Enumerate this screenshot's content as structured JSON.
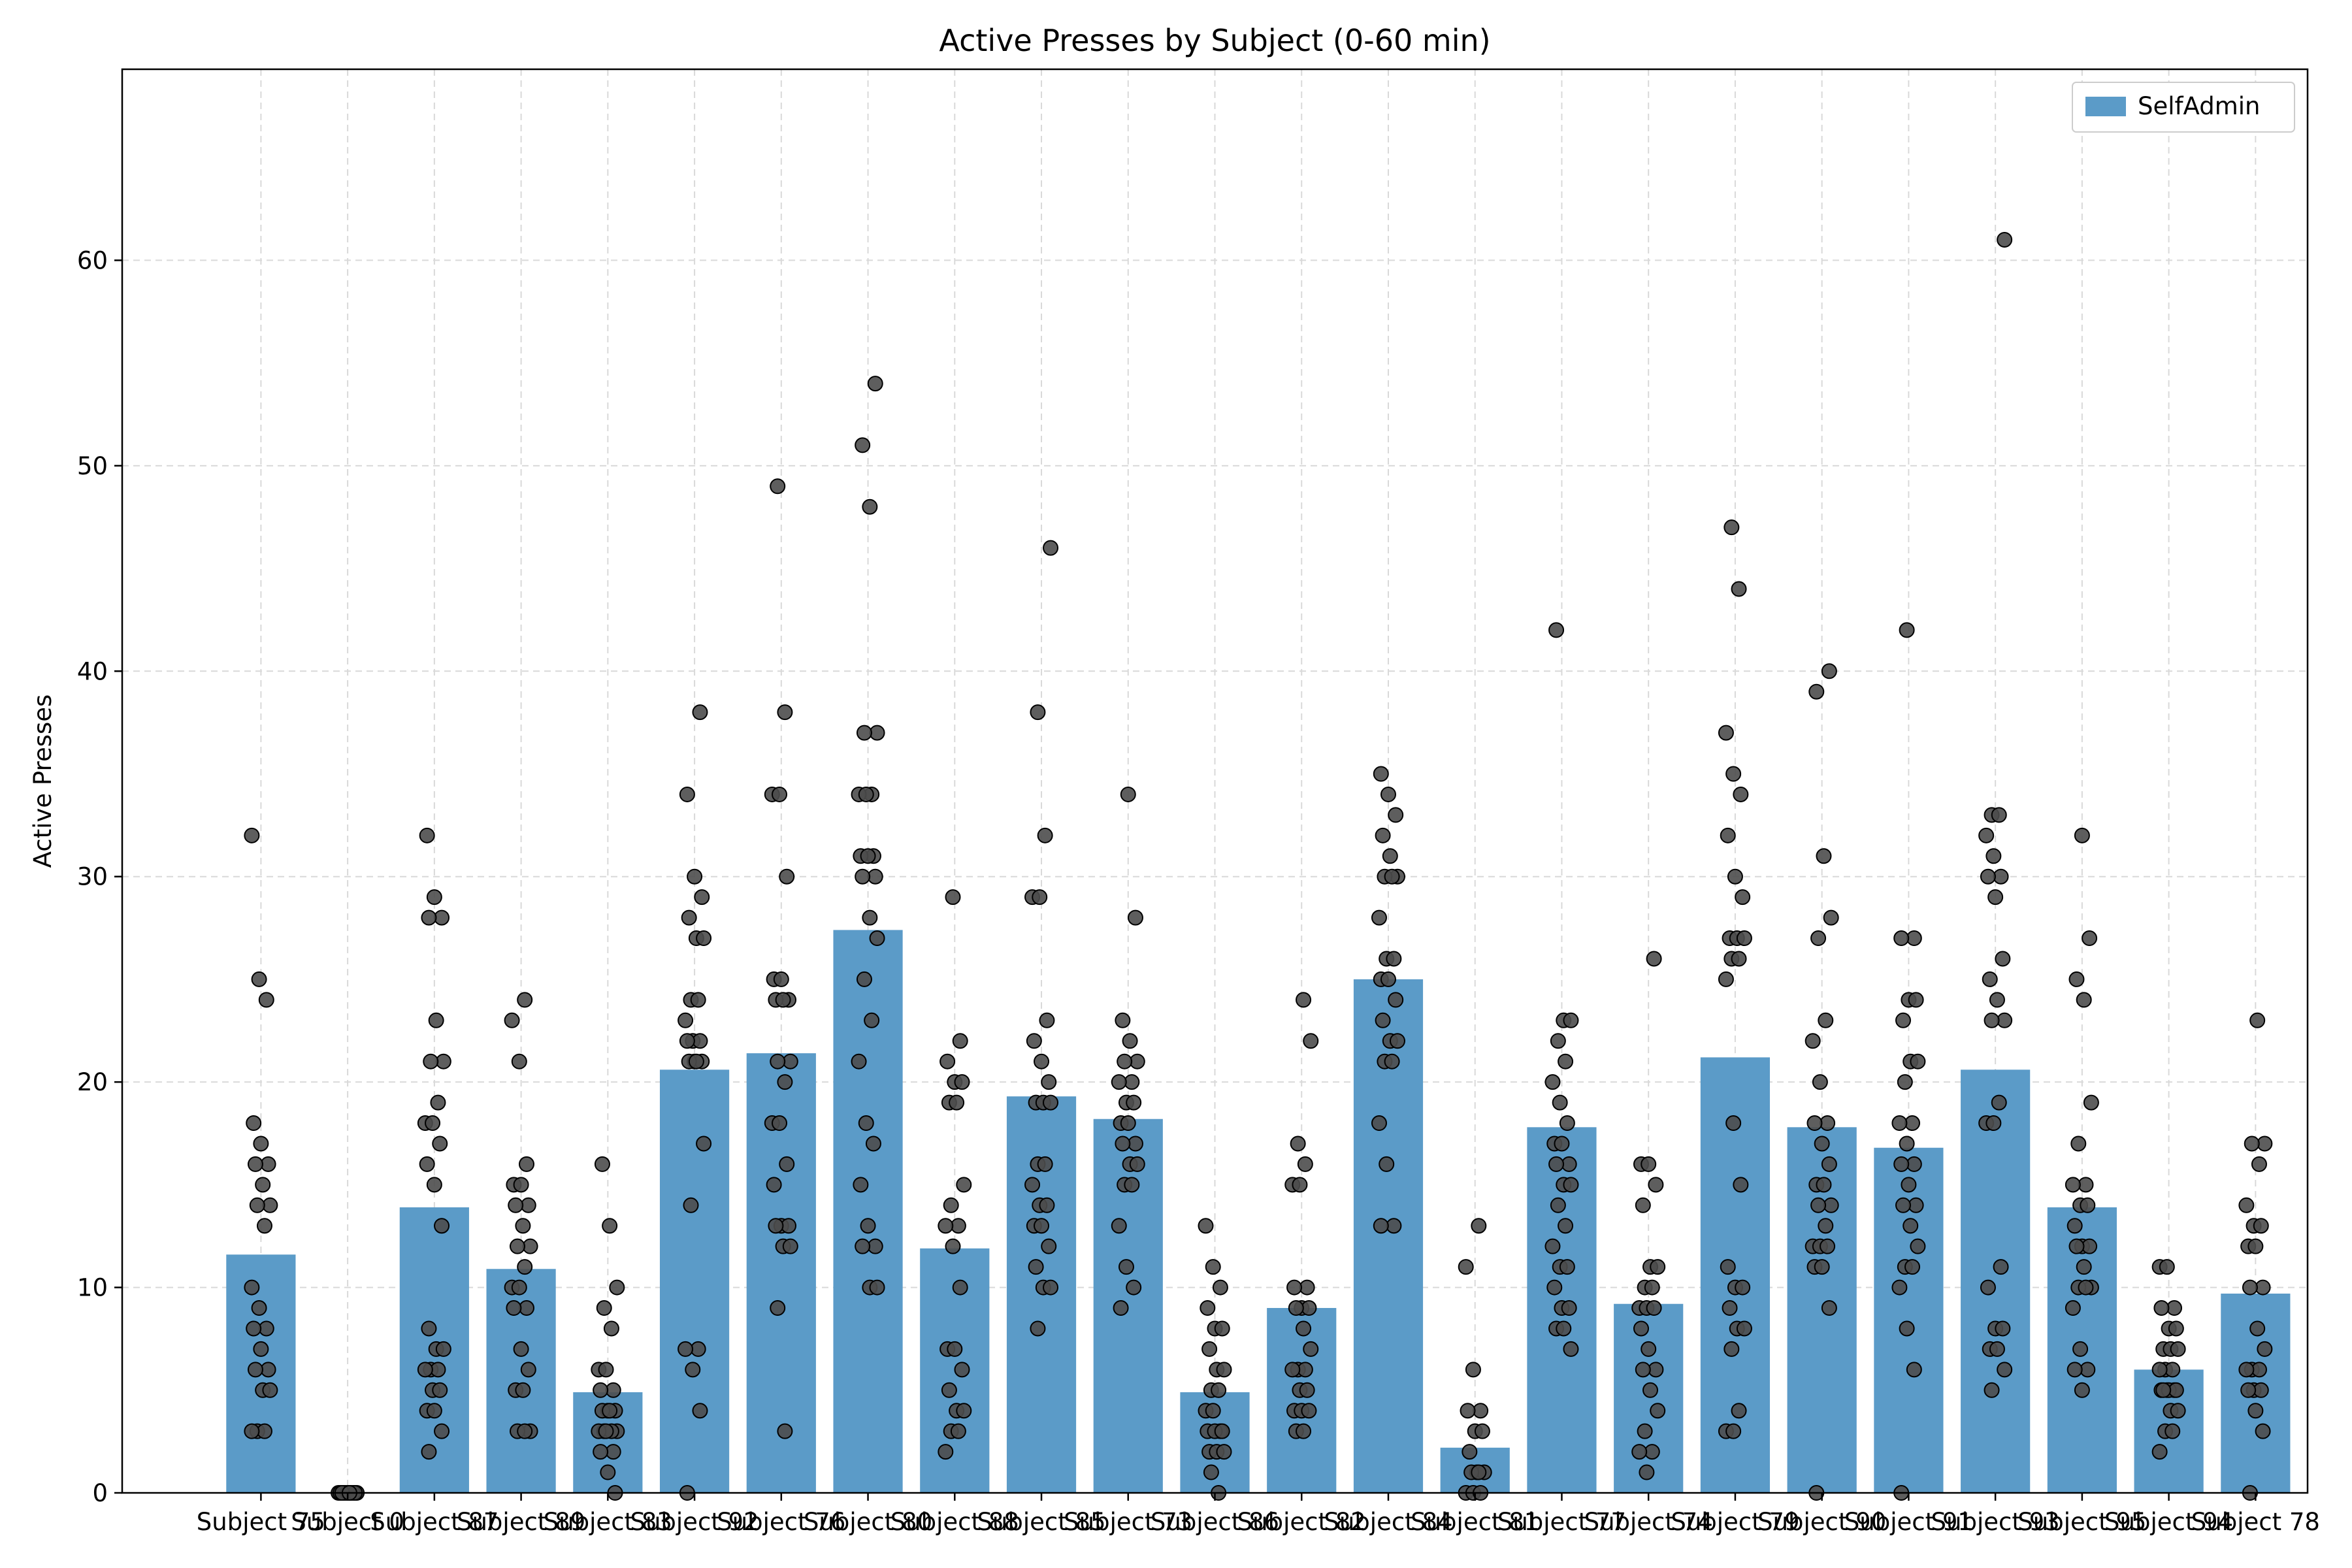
{
  "chart_data": {
    "type": "bar",
    "title": "Active Presses by Subject (0-60 min)",
    "xlabel": "",
    "ylabel": "Active Presses",
    "ylim": [
      0,
      69.3
    ],
    "yticks": [
      0,
      10,
      20,
      30,
      40,
      50,
      60
    ],
    "grid": true,
    "legend_position": "top-right",
    "colors": {
      "bar": "#5b9bc8",
      "point_fill": "#4d4d4d",
      "point_edge": "#000000",
      "grid": "#d9d9d9"
    },
    "categories": [
      "Subject 75",
      "Subject 0",
      "Subject 87",
      "Subject 89",
      "Subject 83",
      "Subject 92",
      "Subject 76",
      "Subject 80",
      "Subject 88",
      "Subject 85",
      "Subject 73",
      "Subject 86",
      "Subject 82",
      "Subject 84",
      "Subject 81",
      "Subject 77",
      "Subject 74",
      "Subject 79",
      "Subject 90",
      "Subject 91",
      "Subject 93",
      "Subject 95",
      "Subject 94",
      "Subject 78"
    ],
    "series": [
      {
        "name": "SelfAdmin",
        "values": [
          11.6,
          0,
          13.9,
          10.9,
          4.9,
          20.6,
          21.4,
          27.4,
          11.9,
          19.3,
          18.2,
          4.9,
          9.0,
          25.0,
          2.2,
          17.8,
          9.2,
          21.2,
          17.8,
          16.8,
          20.6,
          13.9,
          6.0,
          9.7
        ]
      }
    ],
    "points": [
      [
        32,
        25,
        24,
        18,
        17,
        16,
        16,
        15,
        14,
        14,
        13,
        10,
        9,
        8,
        8,
        7,
        6,
        6,
        5,
        5,
        3,
        3,
        3
      ],
      [
        0,
        0,
        0,
        0,
        0,
        0,
        0,
        0,
        0,
        0,
        0,
        0
      ],
      [
        32,
        29,
        28,
        28,
        23,
        21,
        21,
        19,
        18,
        18,
        17,
        16,
        15,
        13,
        8,
        7,
        7,
        6,
        6,
        6,
        5,
        5,
        4,
        4,
        3,
        2
      ],
      [
        24,
        23,
        21,
        16,
        15,
        15,
        14,
        14,
        13,
        12,
        12,
        11,
        10,
        10,
        9,
        9,
        7,
        6,
        5,
        5,
        3,
        3,
        3
      ],
      [
        16,
        13,
        10,
        9,
        8,
        6,
        6,
        5,
        5,
        4,
        4,
        4,
        4,
        3,
        3,
        3,
        3,
        3,
        2,
        2,
        1,
        0
      ],
      [
        38,
        34,
        30,
        29,
        28,
        27,
        27,
        24,
        24,
        23,
        22,
        22,
        22,
        21,
        21,
        21,
        21,
        17,
        14,
        7,
        7,
        6,
        4,
        0
      ],
      [
        49,
        38,
        34,
        34,
        30,
        25,
        25,
        24,
        24,
        24,
        21,
        21,
        20,
        18,
        18,
        16,
        15,
        13,
        13,
        13,
        12,
        12,
        9,
        3
      ],
      [
        54,
        51,
        48,
        37,
        37,
        34,
        34,
        34,
        31,
        31,
        31,
        30,
        30,
        28,
        27,
        25,
        23,
        21,
        18,
        17,
        15,
        13,
        12,
        12,
        10,
        10
      ],
      [
        29,
        22,
        21,
        20,
        20,
        19,
        19,
        15,
        14,
        13,
        13,
        12,
        10,
        7,
        7,
        6,
        5,
        4,
        4,
        3,
        3,
        2
      ],
      [
        46,
        38,
        32,
        29,
        29,
        23,
        22,
        21,
        20,
        19,
        19,
        19,
        16,
        16,
        15,
        14,
        14,
        13,
        13,
        12,
        11,
        10,
        10,
        8
      ],
      [
        34,
        28,
        23,
        22,
        21,
        21,
        20,
        20,
        19,
        19,
        18,
        18,
        17,
        17,
        16,
        16,
        15,
        15,
        13,
        11,
        10,
        9
      ],
      [
        13,
        11,
        10,
        9,
        8,
        8,
        7,
        6,
        6,
        5,
        5,
        4,
        4,
        3,
        3,
        3,
        3,
        2,
        2,
        2,
        1,
        0
      ],
      [
        24,
        22,
        17,
        16,
        15,
        15,
        10,
        10,
        9,
        9,
        9,
        8,
        7,
        6,
        6,
        6,
        5,
        5,
        4,
        4,
        4,
        3,
        3
      ],
      [
        35,
        34,
        33,
        32,
        31,
        30,
        30,
        30,
        28,
        26,
        26,
        25,
        25,
        24,
        23,
        22,
        22,
        21,
        21,
        18,
        16,
        13,
        13
      ],
      [
        13,
        11,
        6,
        4,
        4,
        3,
        3,
        2,
        1,
        1,
        1,
        1,
        0,
        0,
        0
      ],
      [
        42,
        23,
        23,
        22,
        21,
        20,
        19,
        18,
        17,
        17,
        16,
        16,
        15,
        15,
        14,
        13,
        12,
        11,
        11,
        10,
        9,
        9,
        8,
        8,
        7
      ],
      [
        26,
        16,
        16,
        15,
        14,
        11,
        11,
        10,
        10,
        9,
        9,
        9,
        8,
        7,
        6,
        6,
        5,
        4,
        3,
        2,
        2,
        1
      ],
      [
        47,
        44,
        37,
        35,
        34,
        32,
        30,
        29,
        27,
        27,
        27,
        26,
        26,
        25,
        18,
        15,
        11,
        10,
        10,
        9,
        8,
        8,
        7,
        4,
        3,
        3
      ],
      [
        40,
        39,
        31,
        28,
        27,
        23,
        22,
        20,
        18,
        18,
        17,
        16,
        15,
        15,
        14,
        14,
        13,
        12,
        12,
        12,
        11,
        11,
        9,
        0
      ],
      [
        42,
        27,
        27,
        24,
        24,
        23,
        21,
        21,
        20,
        18,
        18,
        17,
        16,
        16,
        15,
        14,
        14,
        13,
        12,
        11,
        11,
        10,
        8,
        6,
        0
      ],
      [
        61,
        33,
        33,
        32,
        31,
        30,
        30,
        29,
        26,
        25,
        24,
        23,
        23,
        19,
        18,
        18,
        11,
        10,
        8,
        8,
        7,
        7,
        6,
        5
      ],
      [
        32,
        27,
        25,
        24,
        19,
        17,
        15,
        15,
        14,
        14,
        13,
        12,
        12,
        12,
        11,
        10,
        10,
        10,
        9,
        7,
        6,
        6,
        5
      ],
      [
        11,
        11,
        9,
        9,
        8,
        8,
        7,
        7,
        7,
        6,
        6,
        6,
        5,
        5,
        5,
        5,
        5,
        5,
        4,
        4,
        3,
        3,
        2
      ],
      [
        23,
        17,
        17,
        16,
        14,
        13,
        13,
        12,
        12,
        10,
        10,
        8,
        7,
        6,
        6,
        6,
        5,
        5,
        5,
        4,
        3,
        0
      ]
    ]
  }
}
